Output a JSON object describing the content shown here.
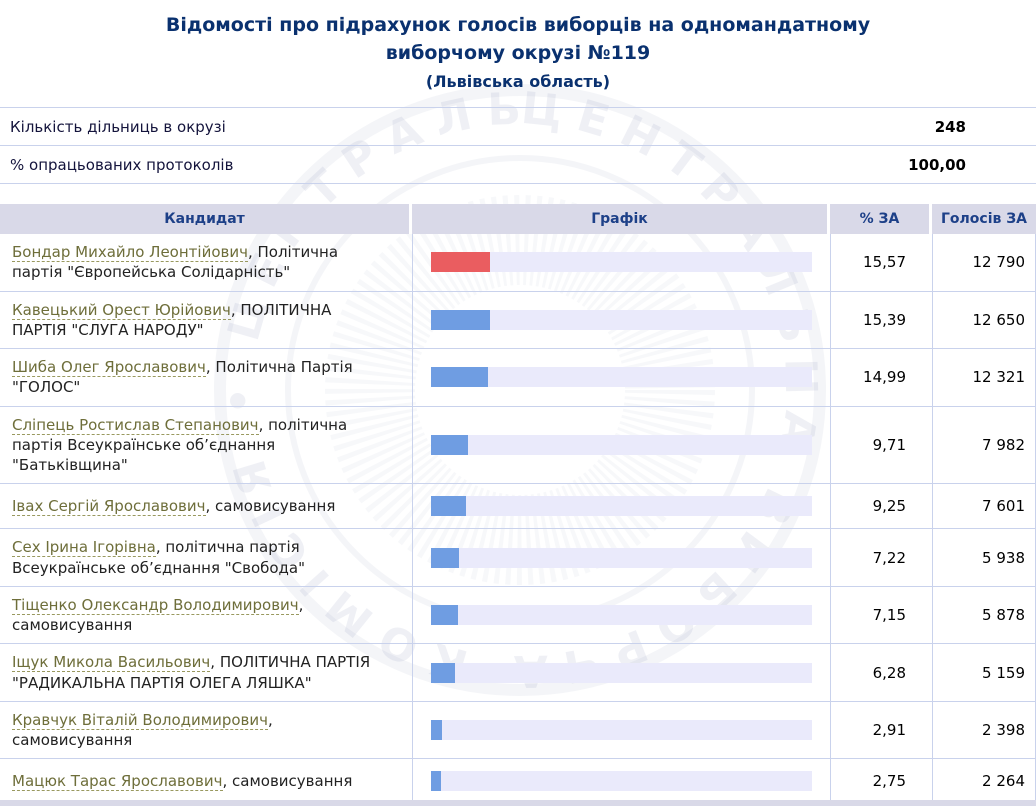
{
  "header": {
    "title_line1": "Відомості про підрахунок голосів виборців на одномандатному",
    "title_line2": "виборчому окрузі №119",
    "subtitle": "(Львівська область)"
  },
  "summary": {
    "rows": [
      {
        "label": "Кількість дільниць в окрузі",
        "value": "248"
      },
      {
        "label": "% опрацьованих протоколів",
        "value": "100,00"
      }
    ]
  },
  "table": {
    "columns": [
      "Кандидат",
      "Графік",
      "% ЗА",
      "Голосів ЗА"
    ],
    "rows": [
      {
        "name": "Бондар Михайло Леонтійович",
        "party": "Політична партія \"Європейська Солідарність\"",
        "pct": "15,57",
        "pct_num": 15.57,
        "votes": "12 790",
        "bar_color": "#ea5d60"
      },
      {
        "name": "Кавецький Орест Юрійович",
        "party": "ПОЛІТИЧНА ПАРТІЯ \"СЛУГА НАРОДУ\"",
        "pct": "15,39",
        "pct_num": 15.39,
        "votes": "12 650",
        "bar_color": "#6f9de2"
      },
      {
        "name": "Шиба Олег Ярославович",
        "party": "Політична Партія \"ГОЛОС\"",
        "pct": "14,99",
        "pct_num": 14.99,
        "votes": "12 321",
        "bar_color": "#6f9de2"
      },
      {
        "name": "Сліпець Ростислав Степанович",
        "party": "політична партія Всеукраїнське об’єднання \"Батьківщина\"",
        "pct": "9,71",
        "pct_num": 9.71,
        "votes": "7 982",
        "bar_color": "#6f9de2"
      },
      {
        "name": "Івах Сергій Ярославович",
        "party": "самовисування",
        "pct": "9,25",
        "pct_num": 9.25,
        "votes": "7 601",
        "bar_color": "#6f9de2"
      },
      {
        "name": "Сех Ірина Ігорівна",
        "party": "політична партія Всеукраїнське об’єднання \"Свобода\"",
        "pct": "7,22",
        "pct_num": 7.22,
        "votes": "5 938",
        "bar_color": "#6f9de2"
      },
      {
        "name": "Тіщенко Олександр Володимирович",
        "party": "самовисування",
        "pct": "7,15",
        "pct_num": 7.15,
        "votes": "5 878",
        "bar_color": "#6f9de2"
      },
      {
        "name": "Іщук Микола Васильович",
        "party": "ПОЛІТИЧНА ПАРТІЯ \"РАДИКАЛЬНА ПАРТІЯ ОЛЕГА ЛЯШКА\"",
        "pct": "6,28",
        "pct_num": 6.28,
        "votes": "5 159",
        "bar_color": "#6f9de2"
      },
      {
        "name": "Кравчук Віталій Володимирович",
        "party": "самовисування",
        "pct": "2,91",
        "pct_num": 2.91,
        "votes": "2 398",
        "bar_color": "#6f9de2"
      },
      {
        "name": "Мацюк Тарас Ярославович",
        "party": "самовисування",
        "pct": "2,75",
        "pct_num": 2.75,
        "votes": "2 264",
        "bar_color": "#6f9de2"
      }
    ]
  },
  "watermark": {
    "text": "ЦЕНТРАЛЬНА ВИБОРЧА КОМІСІЯ • ЦЕНТРАЛЬНА ВИБОРЧА КОМІСІЯ •"
  },
  "colors": {
    "bar_red": "#ea5d60",
    "bar_blue": "#6f9de2",
    "track": "#eaeafb",
    "header_bg": "#d9d9e8",
    "accent_text": "#0a316f"
  }
}
